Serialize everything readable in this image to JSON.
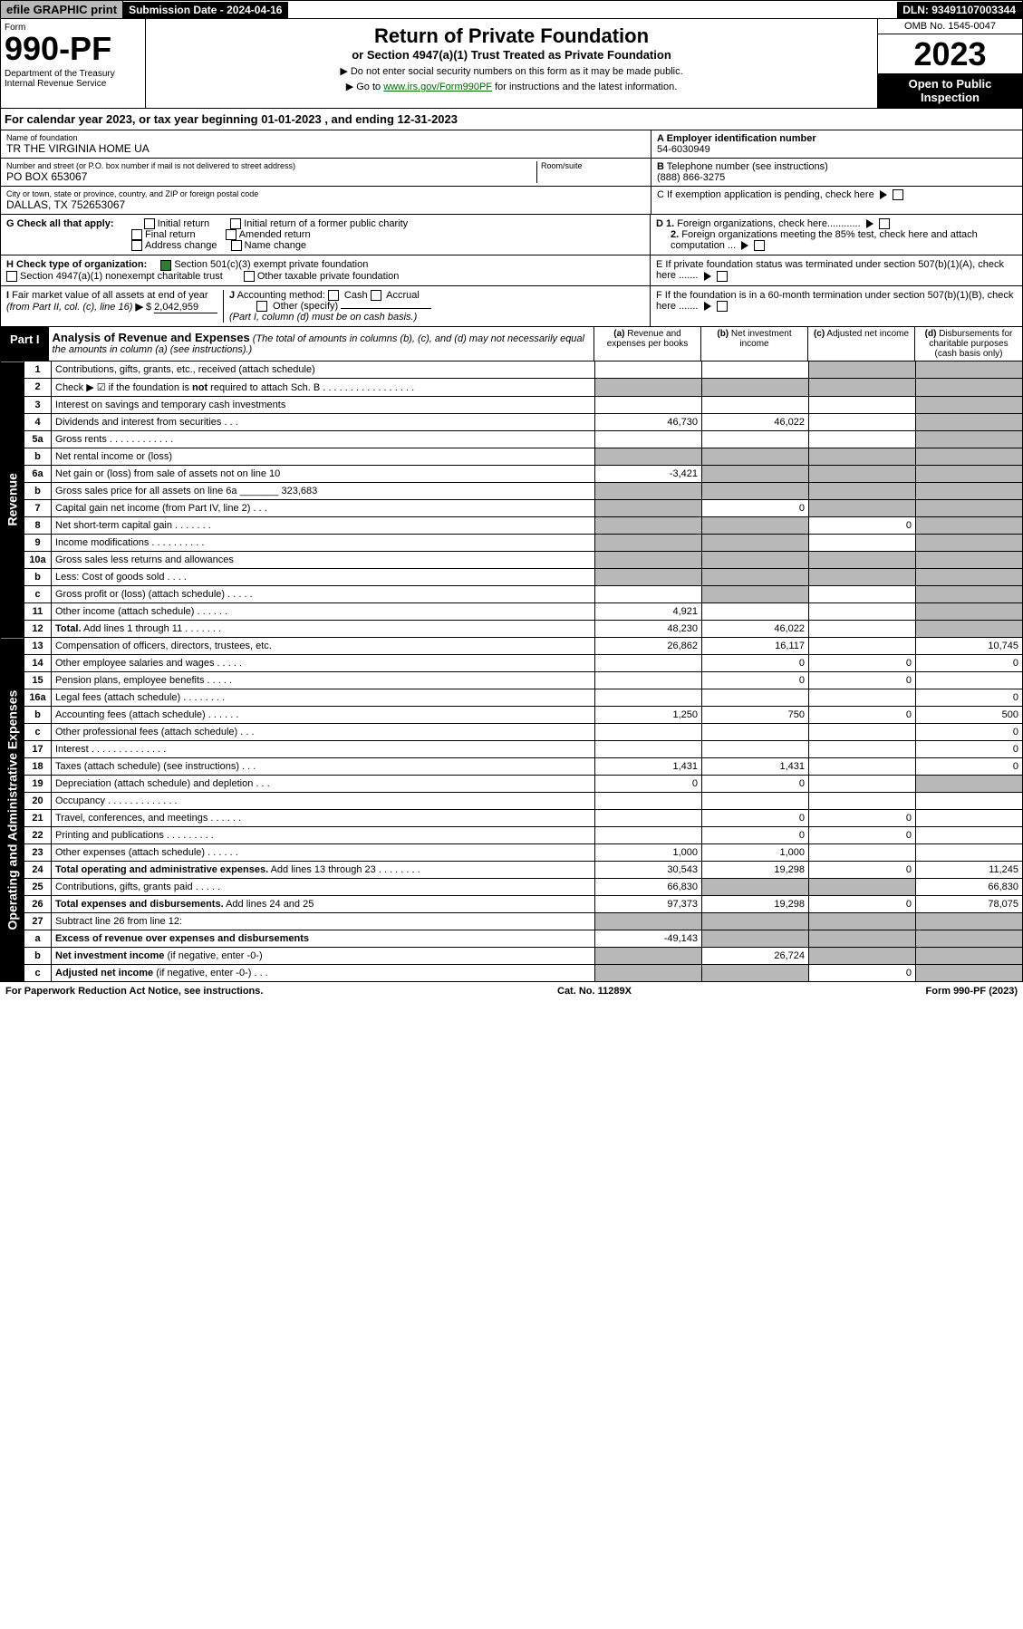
{
  "top": {
    "efile_prefix": "efile",
    "efile_rest": " GRAPHIC print",
    "submission_label": "Submission Date - 2024-04-16",
    "dln": "DLN: 93491107003344"
  },
  "header": {
    "form_label": "Form",
    "form_number": "990-PF",
    "dept": "Department of the Treasury\nInternal Revenue Service",
    "title": "Return of Private Foundation",
    "subtitle": "or Section 4947(a)(1) Trust Treated as Private Foundation",
    "note1": "▶ Do not enter social security numbers on this form as it may be made public.",
    "note2_pre": "▶ Go to ",
    "note2_link": "www.irs.gov/Form990PF",
    "note2_post": " for instructions and the latest information.",
    "omb": "OMB No. 1545-0047",
    "year": "2023",
    "open": "Open to Public Inspection"
  },
  "cal_year": "For calendar year 2023, or tax year beginning 01-01-2023             , and ending 12-31-2023",
  "info": {
    "name_lbl": "Name of foundation",
    "name": "TR THE VIRGINIA HOME UA",
    "addr_lbl": "Number and street (or P.O. box number if mail is not delivered to street address)",
    "addr": "PO BOX 653067",
    "room_lbl": "Room/suite",
    "city_lbl": "City or town, state or province, country, and ZIP or foreign postal code",
    "city": "DALLAS, TX  752653067",
    "a_lbl": "A Employer identification number",
    "ein": "54-6030949",
    "b_lbl": "B Telephone number (see instructions)",
    "phone": "(888) 866-3275",
    "c_lbl": "C If exemption application is pending, check here",
    "d1": "D 1. Foreign organizations, check here............",
    "d2": "2. Foreign organizations meeting the 85% test, check here and attach computation ...",
    "e": "E  If private foundation status was terminated under section 507(b)(1)(A), check here .......",
    "f": "F  If the foundation is in a 60-month termination under section 507(b)(1)(B), check here ......."
  },
  "g": {
    "lbl": "G Check all that apply:",
    "o1": "Initial return",
    "o2": "Initial return of a former public charity",
    "o3": "Final return",
    "o4": "Amended return",
    "o5": "Address change",
    "o6": "Name change"
  },
  "h": {
    "lbl": "H Check type of organization:",
    "o1": "Section 501(c)(3) exempt private foundation",
    "o2": "Section 4947(a)(1) nonexempt charitable trust",
    "o3": "Other taxable private foundation"
  },
  "i": {
    "lbl_b": "I",
    "txt": " Fair market value of all assets at end of year (from Part II, col. (c), line 16) ▶ $ ",
    "val": "2,042,959"
  },
  "j": {
    "lbl_b": "J",
    "txt": " Accounting method:",
    "o1": "Cash",
    "o2": "Accrual",
    "o3": "Other (specify)",
    "note": "(Part I, column (d) must be on cash basis.)"
  },
  "part1": {
    "tag": "Part I",
    "title": "Analysis of Revenue and Expenses",
    "note": " (The total of amounts in columns (b), (c), and (d) may not necessarily equal the amounts in column (a) (see instructions).)",
    "col_a": "(a)   Revenue and expenses per books",
    "col_b": "(b)   Net investment income",
    "col_c": "(c)   Adjusted net income",
    "col_d": "(d)   Disbursements for charitable purposes (cash basis only)"
  },
  "revenue_label": "Revenue",
  "expenses_label": "Operating and Administrative Expenses",
  "lines": [
    {
      "n": "1",
      "d": "Contributions, gifts, grants, etc., received (attach schedule)",
      "a": "",
      "b": "",
      "c": "gray",
      "db": "gray"
    },
    {
      "n": "2",
      "d": "Check ▶ ☑ if the foundation is <b>not</b> required to attach Sch. B   .  .  .  .  .  .  .  .  .  .  .  .  .  .  .  .  .",
      "a": "gray",
      "b": "gray",
      "c": "gray",
      "db": "gray"
    },
    {
      "n": "3",
      "d": "Interest on savings and temporary cash investments",
      "a": "",
      "b": "",
      "c": "",
      "db": "gray"
    },
    {
      "n": "4",
      "d": "Dividends and interest from securities  .  .  .",
      "a": "46,730",
      "b": "46,022",
      "c": "",
      "db": "gray"
    },
    {
      "n": "5a",
      "d": "Gross rents  .  .  .  .  .  .  .  .  .  .  .  .",
      "a": "",
      "b": "",
      "c": "",
      "db": "gray"
    },
    {
      "n": "b",
      "d": "Net rental income or (loss)  ",
      "a": "gray",
      "b": "gray",
      "c": "gray",
      "db": "gray"
    },
    {
      "n": "6a",
      "d": "Net gain or (loss) from sale of assets not on line 10",
      "a": "-3,421",
      "b": "gray",
      "c": "gray",
      "db": "gray"
    },
    {
      "n": "b",
      "d": "Gross sales price for all assets on line 6a _______ 323,683",
      "a": "gray",
      "b": "gray",
      "c": "gray",
      "db": "gray"
    },
    {
      "n": "7",
      "d": "Capital gain net income (from Part IV, line 2)  .  .  .",
      "a": "gray",
      "b": "0",
      "c": "gray",
      "db": "gray"
    },
    {
      "n": "8",
      "d": "Net short-term capital gain   .  .  .  .  .  .  .",
      "a": "gray",
      "b": "gray",
      "c": "0",
      "db": "gray"
    },
    {
      "n": "9",
      "d": "Income modifications  .  .  .  .  .  .  .  .  .  .",
      "a": "gray",
      "b": "gray",
      "c": "",
      "db": "gray"
    },
    {
      "n": "10a",
      "d": "Gross sales less returns and allowances",
      "a": "gray",
      "b": "gray",
      "c": "gray",
      "db": "gray"
    },
    {
      "n": "b",
      "d": "Less: Cost of goods sold   .  .  .  .",
      "a": "gray",
      "b": "gray",
      "c": "gray",
      "db": "gray"
    },
    {
      "n": "c",
      "d": "Gross profit or (loss) (attach schedule)   .  .  .  .  .",
      "a": "",
      "b": "gray",
      "c": "",
      "db": "gray"
    },
    {
      "n": "11",
      "d": "Other income (attach schedule)  .  .  .  .  .  .",
      "a": "4,921",
      "b": "",
      "c": "",
      "db": "gray"
    },
    {
      "n": "12",
      "d": "<b>Total.</b> Add lines 1 through 11   .  .  .  .  .  .  .",
      "a": "48,230",
      "b": "46,022",
      "c": "",
      "db": "gray"
    }
  ],
  "exp_lines": [
    {
      "n": "13",
      "d": "Compensation of officers, directors, trustees, etc.",
      "a": "26,862",
      "b": "16,117",
      "c": "",
      "db": "10,745"
    },
    {
      "n": "14",
      "d": "Other employee salaries and wages  .  .  .  .  .",
      "a": "",
      "b": "0",
      "c": "0",
      "db": "0"
    },
    {
      "n": "15",
      "d": "Pension plans, employee benefits   .  .  .  .  .",
      "a": "",
      "b": "0",
      "c": "0",
      "db": ""
    },
    {
      "n": "16a",
      "d": "Legal fees (attach schedule)  .  .  .  .  .  .  .  .",
      "a": "",
      "b": "",
      "c": "",
      "db": "0"
    },
    {
      "n": "b",
      "d": "Accounting fees (attach schedule)  .  .  .  .  .  .",
      "a": "1,250",
      "b": "750",
      "c": "0",
      "db": "500"
    },
    {
      "n": "c",
      "d": "Other professional fees (attach schedule)  .  .  .",
      "a": "",
      "b": "",
      "c": "",
      "db": "0"
    },
    {
      "n": "17",
      "d": "Interest   .  .  .  .  .  .  .  .  .  .  .  .  .  .",
      "a": "",
      "b": "",
      "c": "",
      "db": "0"
    },
    {
      "n": "18",
      "d": "Taxes (attach schedule) (see instructions)  .  .  .",
      "a": "1,431",
      "b": "1,431",
      "c": "",
      "db": "0"
    },
    {
      "n": "19",
      "d": "Depreciation (attach schedule) and depletion  .  .  .",
      "a": "0",
      "b": "0",
      "c": "",
      "db": "gray"
    },
    {
      "n": "20",
      "d": "Occupancy  .  .  .  .  .  .  .  .  .  .  .  .  .",
      "a": "",
      "b": "",
      "c": "",
      "db": ""
    },
    {
      "n": "21",
      "d": "Travel, conferences, and meetings  .  .  .  .  .  .",
      "a": "",
      "b": "0",
      "c": "0",
      "db": ""
    },
    {
      "n": "22",
      "d": "Printing and publications  .  .  .  .  .  .  .  .  .",
      "a": "",
      "b": "0",
      "c": "0",
      "db": ""
    },
    {
      "n": "23",
      "d": "Other expenses (attach schedule)  .  .  .  .  .  .",
      "a": "1,000",
      "b": "1,000",
      "c": "",
      "db": ""
    },
    {
      "n": "24",
      "d": "<b>Total operating and administrative expenses.</b> Add lines 13 through 23  .  .  .  .  .  .  .  .",
      "a": "30,543",
      "b": "19,298",
      "c": "0",
      "db": "11,245"
    },
    {
      "n": "25",
      "d": "Contributions, gifts, grants paid  .  .  .  .  .",
      "a": "66,830",
      "b": "gray",
      "c": "gray",
      "db": "66,830"
    },
    {
      "n": "26",
      "d": "<b>Total expenses and disbursements.</b> Add lines 24 and 25",
      "a": "97,373",
      "b": "19,298",
      "c": "0",
      "db": "78,075"
    },
    {
      "n": "27",
      "d": "Subtract line 26 from line 12:",
      "a": "gray",
      "b": "gray",
      "c": "gray",
      "db": "gray"
    },
    {
      "n": "a",
      "d": "<b>Excess of revenue over expenses and disbursements</b>",
      "a": "-49,143",
      "b": "gray",
      "c": "gray",
      "db": "gray"
    },
    {
      "n": "b",
      "d": "<b>Net investment income</b> (if negative, enter -0-)",
      "a": "gray",
      "b": "26,724",
      "c": "gray",
      "db": "gray"
    },
    {
      "n": "c",
      "d": "<b>Adjusted net income</b> (if negative, enter -0-)  .  .  .",
      "a": "gray",
      "b": "gray",
      "c": "0",
      "db": "gray"
    }
  ],
  "footer": {
    "l": "For Paperwork Reduction Act Notice, see instructions.",
    "m": "Cat. No. 11289X",
    "r": "Form 990-PF (2023)"
  }
}
